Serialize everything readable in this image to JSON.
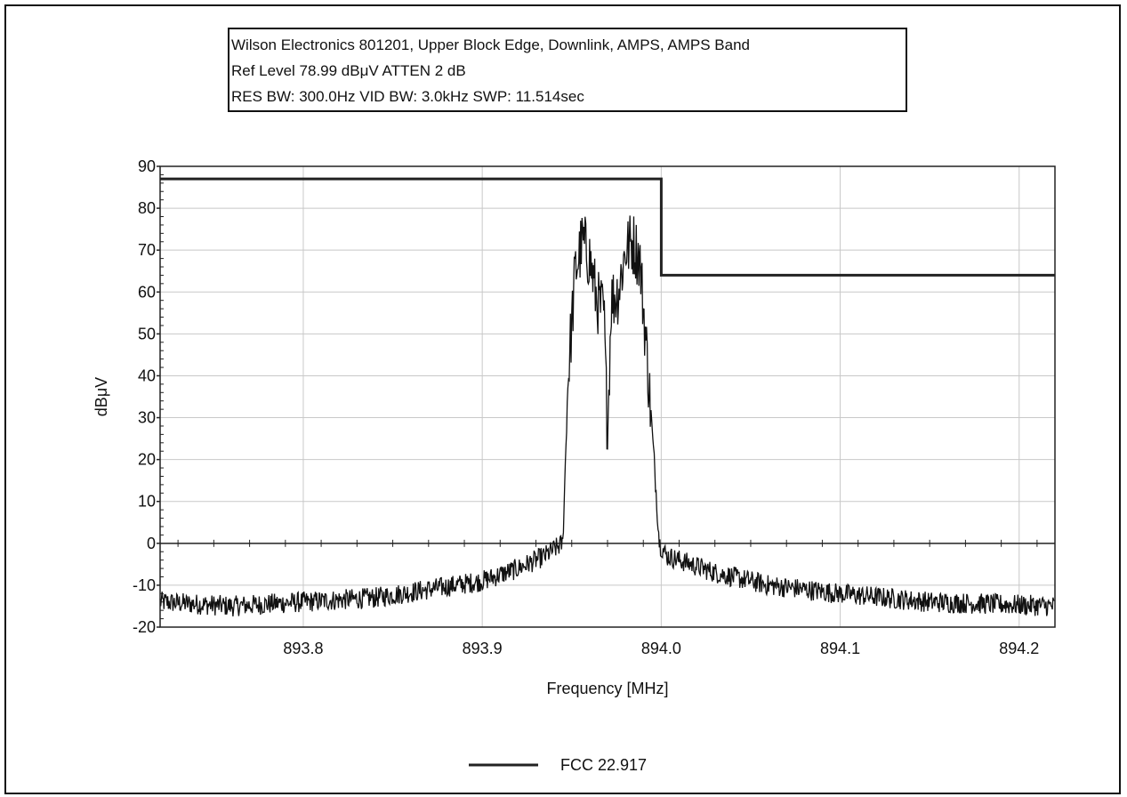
{
  "info_box": {
    "line1": "Wilson Electronics 801201, Upper Block Edge, Downlink, AMPS, AMPS Band",
    "line2": "Ref Level 78.99 dBμV    ATTEN 2 dB",
    "line3": "RES BW: 300.0Hz  VID BW: 3.0kHz  SWP: 11.514sec"
  },
  "chart_data": {
    "type": "line",
    "title": "",
    "xlabel": "Frequency [MHz]",
    "ylabel": "dBμV",
    "xlim": [
      893.72,
      894.22
    ],
    "ylim": [
      -20,
      90
    ],
    "grid": true,
    "legend_position": "bottom-center",
    "x_ticks": [
      {
        "value": 893.8,
        "label": "893.8"
      },
      {
        "value": 893.9,
        "label": "893.9"
      },
      {
        "value": 894.0,
        "label": "894.0"
      },
      {
        "value": 894.1,
        "label": "894.1"
      },
      {
        "value": 894.2,
        "label": "894.2"
      }
    ],
    "y_ticks": [
      {
        "value": 90,
        "label": "90"
      },
      {
        "value": 80,
        "label": "80"
      },
      {
        "value": 70,
        "label": "70"
      },
      {
        "value": 60,
        "label": "60"
      },
      {
        "value": 50,
        "label": "50"
      },
      {
        "value": 40,
        "label": "40"
      },
      {
        "value": 30,
        "label": "30"
      },
      {
        "value": 20,
        "label": "20"
      },
      {
        "value": 10,
        "label": "10"
      },
      {
        "value": 0,
        "label": "0"
      },
      {
        "value": -10,
        "label": "-10"
      },
      {
        "value": -20,
        "label": "-20"
      }
    ],
    "series": [
      {
        "name": "FCC 22.917",
        "kind": "limit",
        "color": "#222222",
        "x": [
          893.72,
          894.0,
          894.0,
          894.22
        ],
        "y": [
          87,
          87,
          64,
          64
        ]
      },
      {
        "kind": "spectrum",
        "color": "#111111",
        "noise_amplitude": 2.5,
        "x": [
          893.72,
          893.76,
          893.8,
          893.84,
          893.87,
          893.9,
          893.92,
          893.935,
          893.945,
          893.948,
          893.952,
          893.956,
          893.96,
          893.964,
          893.968,
          893.97,
          893.972,
          893.976,
          893.98,
          893.984,
          893.988,
          893.992,
          893.996,
          893.999,
          894.003,
          894.01,
          894.03,
          894.06,
          894.1,
          894.15,
          894.22
        ],
        "y": [
          -14,
          -15,
          -14,
          -13,
          -11,
          -9,
          -6,
          -3,
          0,
          40,
          65,
          72,
          68,
          58,
          55,
          25,
          58,
          60,
          70,
          72,
          68,
          45,
          20,
          0,
          -3,
          -4,
          -7,
          -10,
          -12,
          -14,
          -15
        ]
      }
    ]
  },
  "legend": {
    "label": "FCC 22.917"
  }
}
